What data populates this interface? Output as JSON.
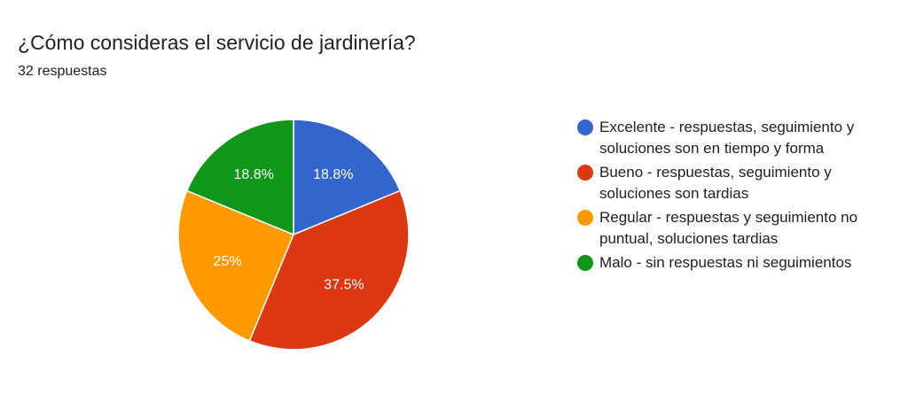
{
  "header": {
    "title": "¿Cómo consideras el servicio de jardinería?",
    "subtitle": "32 respuestas"
  },
  "chart_data": {
    "type": "pie",
    "start_angle_deg": 90,
    "direction": "clockwise",
    "slices": [
      {
        "label": "Excelente - respuestas, seguimiento y soluciones son en tiempo y forma",
        "percent": 18.8,
        "display": "18.8%",
        "color": "#3366CC"
      },
      {
        "label": "Bueno - respuestas, seguimiento y soluciones son tardias",
        "percent": 37.5,
        "display": "37.5%",
        "color": "#DC3912"
      },
      {
        "label": "Regular - respuestas y seguimiento no puntual, soluciones tardias",
        "percent": 25,
        "display": "25%",
        "color": "#FF9900"
      },
      {
        "label": "Malo - sin respuestas ni seguimientos",
        "percent": 18.8,
        "display": "18.8%",
        "color": "#109618"
      }
    ]
  }
}
